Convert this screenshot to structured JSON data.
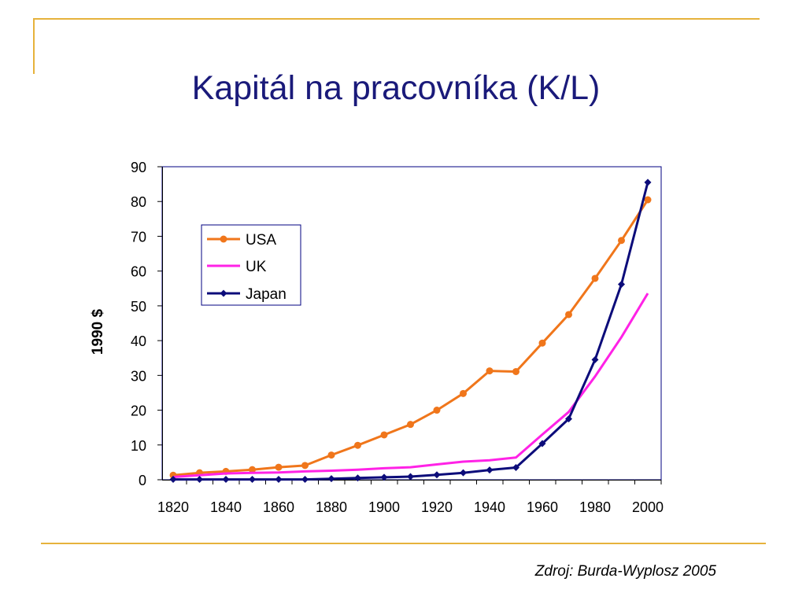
{
  "title": "Kapitál na pracovníka (K/L)",
  "source": "Zdroj: Burda-Wyplosz 2005",
  "colors": {
    "title": "#1a1a7a",
    "accent": "#e6b23c",
    "usa": "#f0761b",
    "uk": "#ff22e6",
    "japan": "#0c0c7a"
  },
  "chart_data": {
    "type": "line",
    "ylabel": "1990 $",
    "xlabel": "",
    "xlim": [
      1820,
      2000
    ],
    "ylim": [
      0,
      90
    ],
    "xticks": [
      1820,
      1840,
      1860,
      1880,
      1900,
      1920,
      1940,
      1960,
      1980,
      2000
    ],
    "yticks": [
      0,
      10,
      20,
      30,
      40,
      50,
      60,
      70,
      80,
      90
    ],
    "grid": false,
    "legend": "upper-left",
    "series": [
      {
        "name": "USA",
        "color": "#f0761b",
        "marker": "circle",
        "x": [
          1820,
          1830,
          1840,
          1850,
          1860,
          1870,
          1880,
          1890,
          1900,
          1910,
          1920,
          1930,
          1940,
          1950,
          1960,
          1970,
          1980,
          1990,
          2000
        ],
        "y": [
          1.3,
          2.0,
          2.4,
          2.9,
          3.6,
          4.1,
          7.1,
          9.9,
          12.9,
          15.9,
          20.0,
          24.8,
          31.3,
          31.1,
          39.3,
          47.5,
          57.9,
          68.8,
          80.5
        ]
      },
      {
        "name": "UK",
        "color": "#ff22e6",
        "marker": "none",
        "x": [
          1820,
          1830,
          1840,
          1850,
          1860,
          1870,
          1880,
          1890,
          1900,
          1910,
          1920,
          1930,
          1940,
          1950,
          1960,
          1970,
          1980,
          1990,
          2000
        ],
        "y": [
          0.8,
          1.3,
          1.8,
          2.0,
          2.1,
          2.4,
          2.6,
          2.9,
          3.3,
          3.6,
          4.4,
          5.2,
          5.6,
          6.4,
          13.0,
          19.5,
          29.7,
          41.0,
          53.6
        ]
      },
      {
        "name": "Japan",
        "color": "#0c0c7a",
        "marker": "diamond",
        "x": [
          1820,
          1830,
          1840,
          1850,
          1860,
          1870,
          1880,
          1890,
          1900,
          1910,
          1920,
          1930,
          1940,
          1950,
          1960,
          1970,
          1980,
          1990,
          2000
        ],
        "y": [
          0.1,
          0.1,
          0.1,
          0.1,
          0.1,
          0.1,
          0.3,
          0.5,
          0.7,
          0.9,
          1.4,
          2.0,
          2.8,
          3.5,
          10.4,
          17.5,
          34.5,
          56.2,
          85.5
        ]
      }
    ]
  }
}
